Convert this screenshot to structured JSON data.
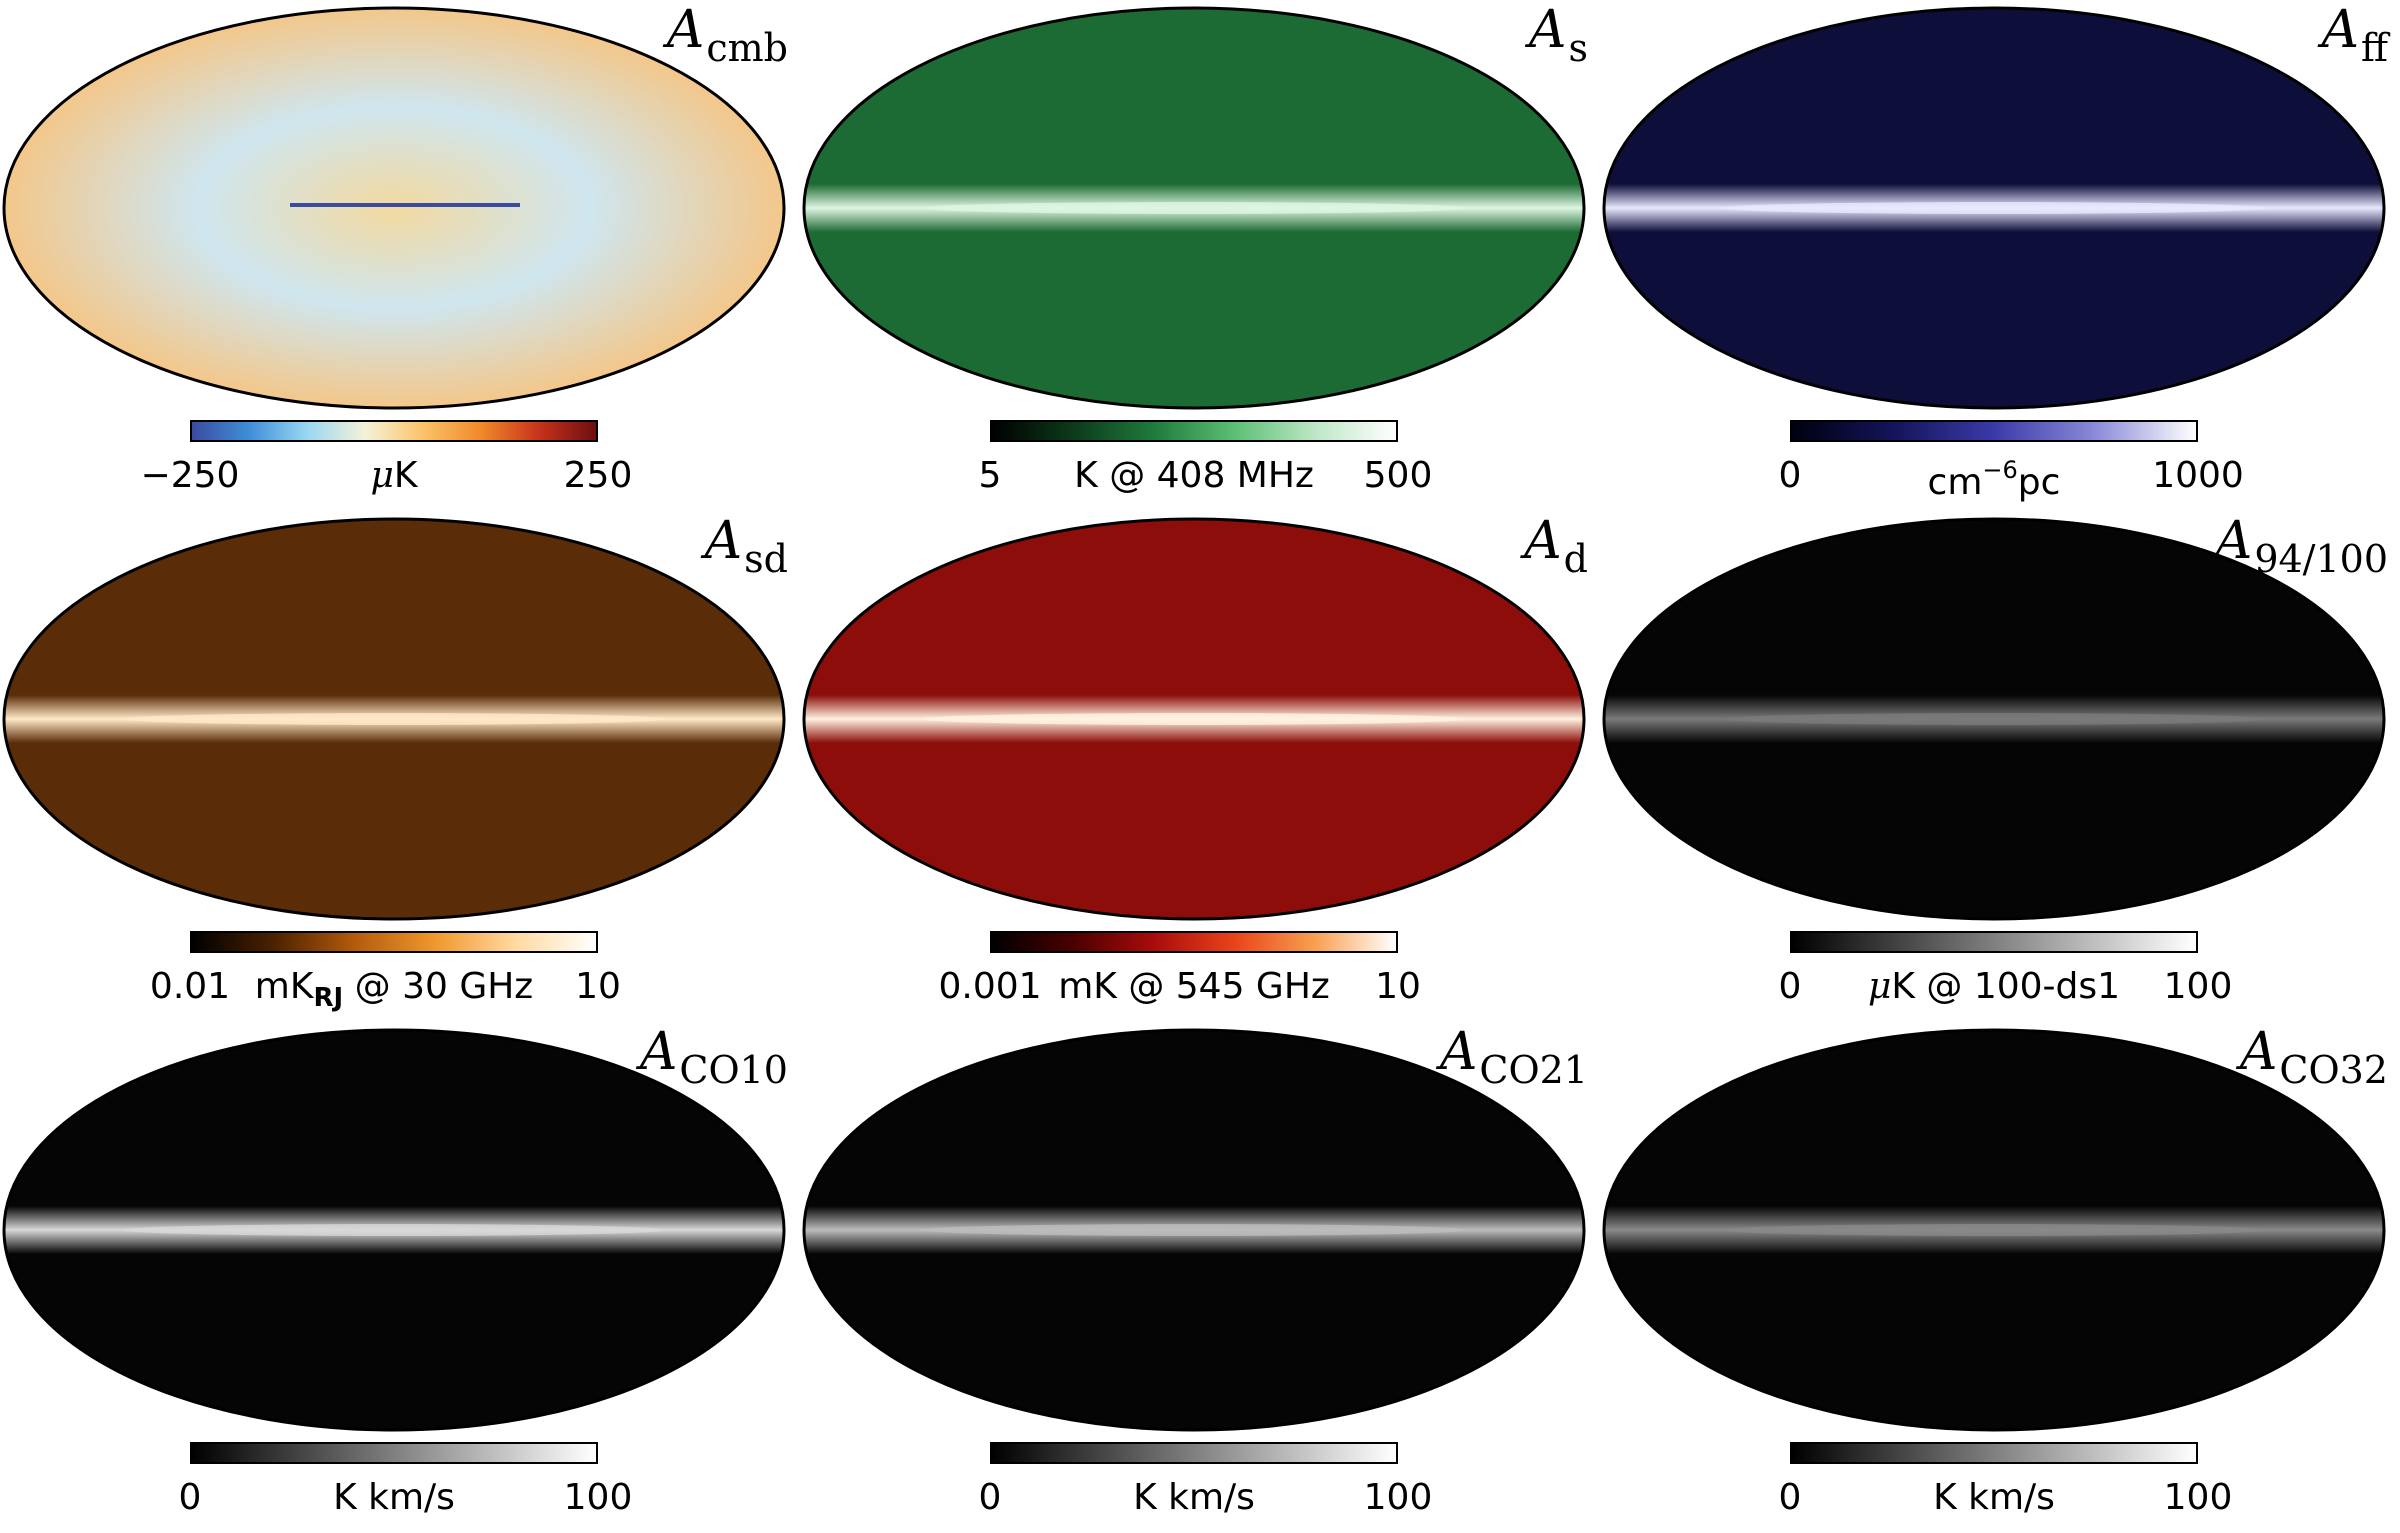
{
  "panels": [
    {
      "title": "A",
      "subscript": "cmb",
      "colorbar": {
        "min": "−250",
        "max": "250",
        "unit_prefix": "μ",
        "unit_main": "K",
        "unit_sup": "",
        "unit_sub": "",
        "unit_suffix": "",
        "colors": [
          "#3a4ca0",
          "#3f8fd8",
          "#9ad7f2",
          "#f5f2d8",
          "#fbc36a",
          "#f08a2a",
          "#c8331c",
          "#6e0f0f"
        ]
      },
      "map": {
        "background": "#f1e6c2",
        "band": "none"
      }
    },
    {
      "title": "A",
      "subscript": "s",
      "colorbar": {
        "min": "5",
        "max": "500",
        "unit_prefix": "",
        "unit_main": "K @ 408 MHz",
        "unit_sup": "",
        "unit_sub": "",
        "unit_suffix": "",
        "colors": [
          "#000000",
          "#0c3a1a",
          "#1f7a3c",
          "#5cbf74",
          "#bde7c6",
          "#ffffff"
        ]
      },
      "map": {
        "background": "#1d6b34",
        "band": "#dff5e2"
      }
    },
    {
      "title": "A",
      "subscript": "ff",
      "colorbar": {
        "min": "0",
        "max": "1000",
        "unit_prefix": "",
        "unit_main": "cm",
        "unit_sup": "−6",
        "unit_sub": "",
        "unit_suffix": "pc",
        "colors": [
          "#000010",
          "#14145a",
          "#3a3aa8",
          "#8a8ad8",
          "#ffffff"
        ]
      },
      "map": {
        "background": "#0e0e3a",
        "band": "#e8e8ff"
      }
    },
    {
      "title": "A",
      "subscript": "sd",
      "colorbar": {
        "min": "0.01",
        "max": "10",
        "unit_prefix": "",
        "unit_main": "mK",
        "unit_sup": "",
        "unit_sub": "RJ",
        "unit_suffix": " @ 30 GHz",
        "colors": [
          "#000000",
          "#4a2100",
          "#b25a0c",
          "#f0972c",
          "#ffd9a0",
          "#ffffff"
        ]
      },
      "map": {
        "background": "#5a2c08",
        "band": "#ffe9c8"
      }
    },
    {
      "title": "A",
      "subscript": "d",
      "colorbar": {
        "min": "0.001",
        "max": "10",
        "unit_prefix": "",
        "unit_main": "mK @ 545 GHz",
        "unit_sup": "",
        "unit_sub": "",
        "unit_suffix": "",
        "colors": [
          "#000000",
          "#4a0000",
          "#a80c0c",
          "#e8441a",
          "#f8a050",
          "#ffffff"
        ]
      },
      "map": {
        "background": "#8c0d0a",
        "band": "#fff2e0"
      }
    },
    {
      "title": "A",
      "subscript": "94/100",
      "colorbar": {
        "min": "0",
        "max": "100",
        "unit_prefix": "μ",
        "unit_main": "K @ 100-ds1",
        "unit_sup": "",
        "unit_sub": "",
        "unit_suffix": "",
        "colors": [
          "#000000",
          "#ffffff"
        ]
      },
      "map": {
        "background": "#050505",
        "band": "#7a7a7a"
      }
    },
    {
      "title": "A",
      "subscript": "CO10",
      "colorbar": {
        "min": "0",
        "max": "100",
        "unit_prefix": "",
        "unit_main": "K km/s",
        "unit_sup": "",
        "unit_sub": "",
        "unit_suffix": "",
        "colors": [
          "#000000",
          "#ffffff"
        ]
      },
      "map": {
        "background": "#050505",
        "band": "#d8d8d8"
      }
    },
    {
      "title": "A",
      "subscript": "CO21",
      "colorbar": {
        "min": "0",
        "max": "100",
        "unit_prefix": "",
        "unit_main": "K km/s",
        "unit_sup": "",
        "unit_sub": "",
        "unit_suffix": "",
        "colors": [
          "#000000",
          "#ffffff"
        ]
      },
      "map": {
        "background": "#050505",
        "band": "#bdbdbd"
      }
    },
    {
      "title": "A",
      "subscript": "CO32",
      "colorbar": {
        "min": "0",
        "max": "100",
        "unit_prefix": "",
        "unit_main": "K km/s",
        "unit_sup": "",
        "unit_sub": "",
        "unit_suffix": "",
        "colors": [
          "#000000",
          "#ffffff"
        ]
      },
      "map": {
        "background": "#050505",
        "band": "#8a8a8a"
      }
    }
  ]
}
